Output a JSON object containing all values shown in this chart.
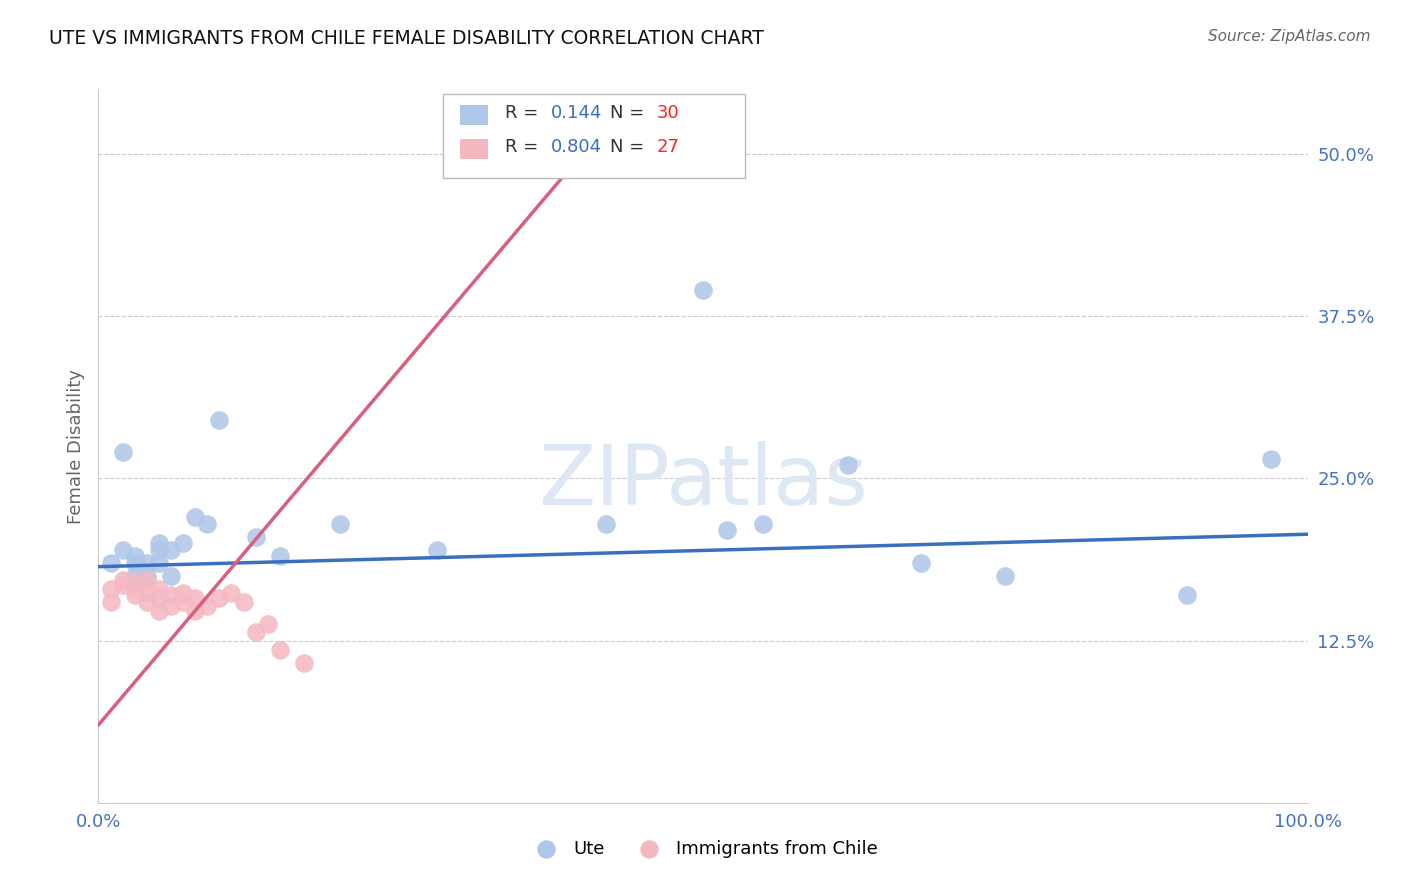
{
  "title": "UTE VS IMMIGRANTS FROM CHILE FEMALE DISABILITY CORRELATION CHART",
  "source": "Source: ZipAtlas.com",
  "ylabel": "Female Disability",
  "watermark": "ZIPatlas",
  "xlim": [
    0.0,
    1.0
  ],
  "ylim": [
    0.0,
    0.55
  ],
  "xticks": [
    0.0,
    0.25,
    0.5,
    0.75,
    1.0
  ],
  "xticklabels": [
    "0.0%",
    "",
    "",
    "",
    "100.0%"
  ],
  "yticks": [
    0.0,
    0.125,
    0.25,
    0.375,
    0.5
  ],
  "yticklabels": [
    "",
    "12.5%",
    "25.0%",
    "37.5%",
    "50.0%"
  ],
  "grid_color": "#cccccc",
  "background_color": "#ffffff",
  "ute_color": "#aec6e8",
  "chile_color": "#f4b8c1",
  "ute_line_color": "#3a6fbf",
  "chile_line_color": "#d95f7f",
  "ute_R": 0.144,
  "ute_N": 30,
  "chile_R": 0.804,
  "chile_N": 27,
  "ute_scatter_x": [
    0.01,
    0.02,
    0.02,
    0.03,
    0.03,
    0.04,
    0.04,
    0.05,
    0.05,
    0.05,
    0.06,
    0.06,
    0.07,
    0.08,
    0.09,
    0.1,
    0.13,
    0.15,
    0.2,
    0.28,
    0.42,
    0.5,
    0.55,
    0.62,
    0.68,
    0.75,
    0.9,
    0.97,
    0.52,
    0.03
  ],
  "ute_scatter_y": [
    0.185,
    0.195,
    0.27,
    0.19,
    0.185,
    0.175,
    0.185,
    0.195,
    0.185,
    0.2,
    0.175,
    0.195,
    0.2,
    0.22,
    0.215,
    0.295,
    0.205,
    0.19,
    0.215,
    0.195,
    0.215,
    0.395,
    0.215,
    0.26,
    0.185,
    0.175,
    0.16,
    0.265,
    0.21,
    0.175
  ],
  "chile_scatter_x": [
    0.01,
    0.01,
    0.02,
    0.02,
    0.03,
    0.03,
    0.03,
    0.04,
    0.04,
    0.04,
    0.05,
    0.05,
    0.05,
    0.06,
    0.06,
    0.07,
    0.07,
    0.08,
    0.08,
    0.09,
    0.1,
    0.11,
    0.12,
    0.13,
    0.14,
    0.15,
    0.17
  ],
  "chile_scatter_y": [
    0.165,
    0.155,
    0.168,
    0.172,
    0.16,
    0.165,
    0.17,
    0.155,
    0.162,
    0.172,
    0.148,
    0.158,
    0.165,
    0.152,
    0.16,
    0.155,
    0.162,
    0.148,
    0.158,
    0.152,
    0.158,
    0.162,
    0.155,
    0.132,
    0.138,
    0.118,
    0.108
  ],
  "ute_line_x": [
    0.0,
    1.0
  ],
  "ute_line_y": [
    0.182,
    0.207
  ],
  "chile_line_x": [
    0.0,
    0.4
  ],
  "chile_line_y": [
    0.06,
    0.5
  ]
}
